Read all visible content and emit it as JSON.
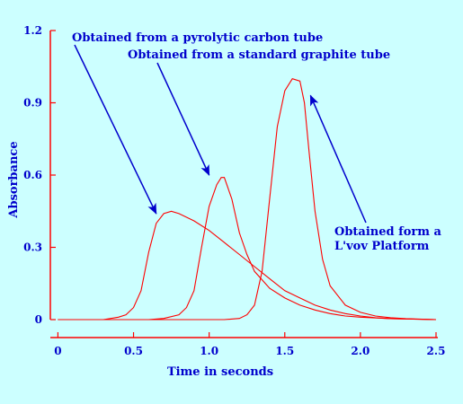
{
  "chart_data": {
    "type": "line",
    "title": "",
    "xlabel": "Time in seconds",
    "ylabel": "Absorbance",
    "xlim": [
      -0.05,
      2.5
    ],
    "ylim": [
      0,
      1.2
    ],
    "xticks": [
      "0",
      "0.5",
      "1.0",
      "1.5",
      "2.0",
      "2.5"
    ],
    "xtick_values": [
      0,
      0.5,
      1.0,
      1.5,
      2.0,
      2.5
    ],
    "yticks": [
      "0",
      "0.3",
      "0.6",
      "0.9",
      "1.2"
    ],
    "ytick_values": [
      0,
      0.3,
      0.6,
      0.9,
      1.2
    ],
    "grid": false,
    "colors": {
      "background": "#ccffff",
      "axes": "#ff0000",
      "curves": "#ff0000",
      "text": "#0000cc",
      "arrows": "#0000cc"
    },
    "series": [
      {
        "label": "Obtained from a pyrolytic carbon tube",
        "x": [
          0.0,
          0.3,
          0.4,
          0.45,
          0.5,
          0.55,
          0.6,
          0.65,
          0.7,
          0.75,
          0.8,
          0.9,
          1.0,
          1.1,
          1.2,
          1.3,
          1.4,
          1.5,
          1.6,
          1.7,
          1.8,
          1.9,
          2.0,
          2.1,
          2.2,
          2.5
        ],
        "y": [
          0.0,
          0.0,
          0.01,
          0.02,
          0.05,
          0.12,
          0.28,
          0.4,
          0.44,
          0.45,
          0.44,
          0.41,
          0.37,
          0.32,
          0.27,
          0.22,
          0.17,
          0.12,
          0.09,
          0.06,
          0.04,
          0.025,
          0.015,
          0.008,
          0.004,
          0.0
        ]
      },
      {
        "label": "Obtained from a standard graphite tube",
        "x": [
          0.0,
          0.6,
          0.7,
          0.8,
          0.85,
          0.9,
          0.95,
          1.0,
          1.05,
          1.08,
          1.1,
          1.15,
          1.2,
          1.25,
          1.3,
          1.4,
          1.5,
          1.6,
          1.7,
          1.8,
          1.9,
          2.0,
          2.2,
          2.5
        ],
        "y": [
          0.0,
          0.0,
          0.005,
          0.02,
          0.05,
          0.12,
          0.3,
          0.47,
          0.56,
          0.59,
          0.59,
          0.5,
          0.36,
          0.27,
          0.2,
          0.13,
          0.09,
          0.06,
          0.04,
          0.025,
          0.015,
          0.01,
          0.004,
          0.0
        ]
      },
      {
        "label": "Obtained form a L'vov Platform",
        "x": [
          0.0,
          1.1,
          1.2,
          1.25,
          1.3,
          1.35,
          1.4,
          1.45,
          1.5,
          1.55,
          1.6,
          1.63,
          1.66,
          1.7,
          1.75,
          1.8,
          1.9,
          2.0,
          2.1,
          2.2,
          2.3,
          2.5
        ],
        "y": [
          0.0,
          0.0,
          0.005,
          0.02,
          0.06,
          0.2,
          0.5,
          0.8,
          0.95,
          1.0,
          0.99,
          0.9,
          0.7,
          0.45,
          0.25,
          0.14,
          0.06,
          0.03,
          0.015,
          0.008,
          0.004,
          0.0
        ]
      }
    ],
    "annotations": [
      {
        "text": "Obtained from a pyrolytic carbon tube",
        "x": 0.65,
        "y": 0.44
      },
      {
        "text": "Obtained from a standard graphite tube",
        "x": 1.0,
        "y": 0.6
      },
      {
        "text": "Obtained form a",
        "x": 1.67,
        "y": 0.93
      },
      {
        "text": "L'vov Platform",
        "x": 1.67,
        "y": 0.93
      }
    ]
  }
}
